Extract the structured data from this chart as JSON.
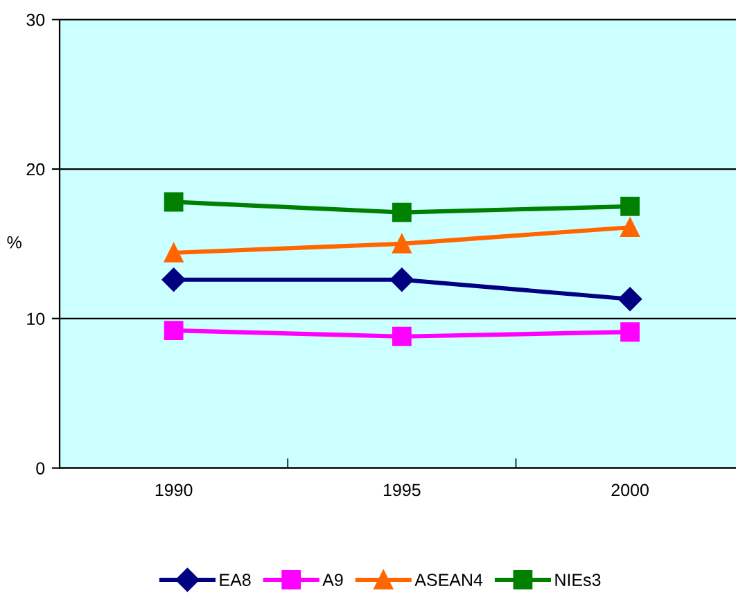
{
  "chart_data": {
    "type": "line",
    "ylabel": "%",
    "categories": [
      "1990",
      "1995",
      "2000"
    ],
    "series": [
      {
        "name": "EA8",
        "color": "#000080",
        "marker": "diamond",
        "values": [
          12.6,
          12.6,
          11.3
        ]
      },
      {
        "name": "A9",
        "color": "#ff00ff",
        "marker": "square",
        "values": [
          9.2,
          8.8,
          9.1
        ]
      },
      {
        "name": "ASEAN4",
        "color": "#ff6600",
        "marker": "triangle",
        "values": [
          14.4,
          15.0,
          16.1
        ]
      },
      {
        "name": "NIEs3",
        "color": "#008000",
        "marker": "square",
        "values": [
          17.8,
          17.1,
          17.5
        ]
      }
    ],
    "ylim": [
      0,
      30
    ],
    "yticks": [
      0,
      10,
      20,
      30
    ],
    "grid": "y",
    "legend": "bottom"
  }
}
